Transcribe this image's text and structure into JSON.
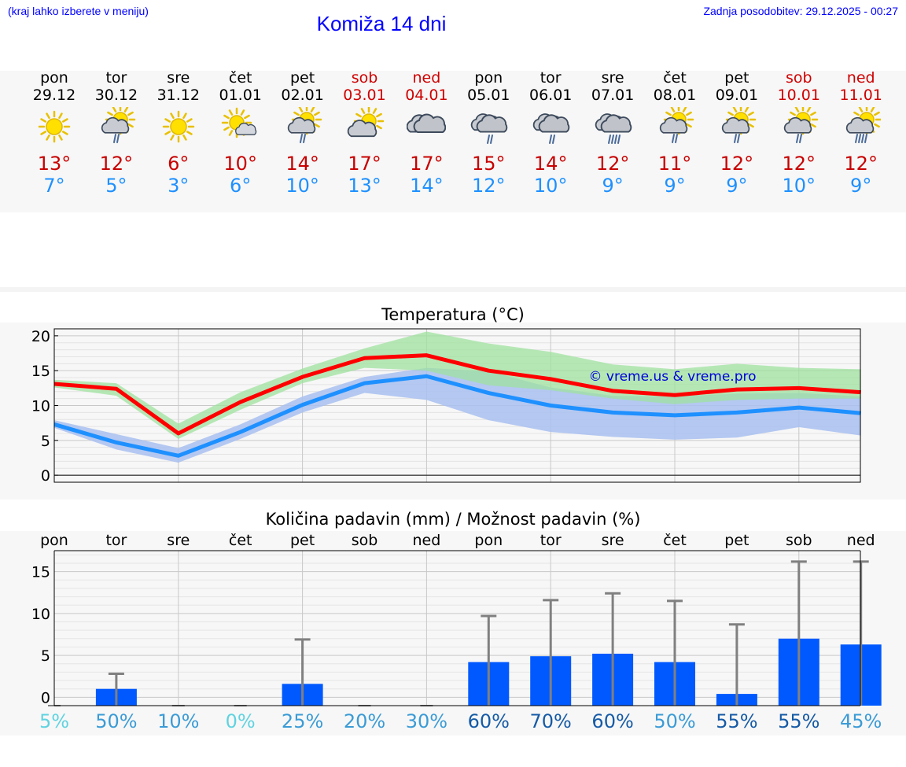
{
  "header": {
    "location_hint": "(kraj lahko izberete v meniju)",
    "title": "Komiža 14 dni",
    "last_update": "Zadnja posodobitev: 29.12.2025 - 00:27"
  },
  "days": [
    {
      "day": "pon",
      "date": "29.12",
      "tmax": "13°",
      "tmin": "7°",
      "icon": "sun-icon",
      "weekend": false
    },
    {
      "day": "tor",
      "date": "30.12",
      "tmax": "12°",
      "tmin": "5°",
      "icon": "sun-cloud-rain-icon",
      "weekend": false
    },
    {
      "day": "sre",
      "date": "31.12",
      "tmax": "6°",
      "tmin": "3°",
      "icon": "sun-icon",
      "weekend": false
    },
    {
      "day": "čet",
      "date": "01.01",
      "tmax": "10°",
      "tmin": "6°",
      "icon": "sun-small-cloud-icon",
      "weekend": false
    },
    {
      "day": "pet",
      "date": "02.01",
      "tmax": "14°",
      "tmin": "10°",
      "icon": "sun-cloud-rain-icon",
      "weekend": false
    },
    {
      "day": "sob",
      "date": "03.01",
      "tmax": "17°",
      "tmin": "13°",
      "icon": "sun-cloud-icon",
      "weekend": true
    },
    {
      "day": "ned",
      "date": "04.01",
      "tmax": "17°",
      "tmin": "14°",
      "icon": "cloud-icon",
      "weekend": true
    },
    {
      "day": "pon",
      "date": "05.01",
      "tmax": "15°",
      "tmin": "12°",
      "icon": "cloud-rain-icon",
      "weekend": false
    },
    {
      "day": "tor",
      "date": "06.01",
      "tmax": "14°",
      "tmin": "10°",
      "icon": "cloud-rain-icon",
      "weekend": false
    },
    {
      "day": "sre",
      "date": "07.01",
      "tmax": "12°",
      "tmin": "9°",
      "icon": "cloud-heavy-rain-icon",
      "weekend": false
    },
    {
      "day": "čet",
      "date": "08.01",
      "tmax": "11°",
      "tmin": "9°",
      "icon": "sun-cloud-rain-icon",
      "weekend": false
    },
    {
      "day": "pet",
      "date": "09.01",
      "tmax": "12°",
      "tmin": "9°",
      "icon": "sun-cloud-rain-icon",
      "weekend": false
    },
    {
      "day": "sob",
      "date": "10.01",
      "tmax": "12°",
      "tmin": "10°",
      "icon": "sun-cloud-rain-icon",
      "weekend": true
    },
    {
      "day": "ned",
      "date": "11.01",
      "tmax": "12°",
      "tmin": "9°",
      "icon": "sun-cloud-heavy-rain-icon",
      "weekend": true
    }
  ],
  "chart_data": [
    {
      "type": "line",
      "title": "Temperatura (°C)",
      "watermark": "© vreme.us & vreme.pro",
      "ylim": [
        -1,
        21
      ],
      "yticks": [
        0,
        5,
        10,
        15,
        20
      ],
      "series": [
        {
          "name": "max",
          "color": "#ff0000",
          "values": [
            13.1,
            12.4,
            6.0,
            10.5,
            14.1,
            16.8,
            17.2,
            15.0,
            13.8,
            12.1,
            11.5,
            12.3,
            12.5,
            11.9
          ]
        },
        {
          "name": "min",
          "color": "#1e90ff",
          "values": [
            7.3,
            4.7,
            2.8,
            6.2,
            10.1,
            13.2,
            14.2,
            11.8,
            10.0,
            9.0,
            8.6,
            9.0,
            9.7,
            8.9
          ]
        },
        {
          "name": "max-range",
          "color": "#9fe29f",
          "low": [
            12.6,
            11.4,
            5.2,
            9.4,
            13.2,
            15.4,
            15.0,
            12.9,
            12.2,
            11.0,
            10.2,
            10.8,
            11.0,
            11.0
          ],
          "high": [
            13.7,
            13.2,
            7.4,
            11.9,
            15.3,
            18.2,
            20.6,
            18.9,
            17.7,
            15.9,
            15.2,
            16.0,
            15.4,
            15.2
          ]
        },
        {
          "name": "min-range",
          "color": "#a8c0f0",
          "low": [
            6.8,
            3.7,
            1.8,
            5.2,
            9.0,
            11.8,
            10.8,
            7.9,
            6.2,
            5.5,
            5.1,
            5.4,
            6.9,
            5.7
          ],
          "high": [
            7.9,
            5.9,
            3.9,
            7.3,
            11.3,
            14.1,
            15.4,
            14.9,
            12.6,
            11.4,
            11.3,
            11.7,
            11.8,
            11.3
          ]
        }
      ]
    },
    {
      "type": "bar",
      "title": "Količina padavin (mm) / Možnost padavin (%)",
      "categories": [
        "pon",
        "tor",
        "sre",
        "čet",
        "pet",
        "sob",
        "ned",
        "pon",
        "tor",
        "sre",
        "čet",
        "pet",
        "sob",
        "ned"
      ],
      "ylim": [
        -1,
        17.5
      ],
      "yticks": [
        0,
        5,
        10,
        15
      ],
      "values": [
        0,
        1.0,
        0,
        0,
        1.6,
        0,
        0,
        4.2,
        4.9,
        5.2,
        4.2,
        0.4,
        7.0,
        6.3
      ],
      "error_high": [
        0,
        2.8,
        0,
        0,
        6.9,
        0,
        0,
        9.7,
        11.6,
        12.4,
        11.5,
        8.7,
        16.2,
        16.2
      ],
      "chance": [
        "5%",
        "50%",
        "10%",
        "0%",
        "25%",
        "20%",
        "30%",
        "60%",
        "70%",
        "60%",
        "50%",
        "55%",
        "55%",
        "45%"
      ],
      "chance_colors": [
        "#5fd3e0",
        "#3a9bd6",
        "#3a9bd6",
        "#5fd3e0",
        "#3a9bd6",
        "#3a9bd6",
        "#3a9bd6",
        "#155aa6",
        "#155aa6",
        "#155aa6",
        "#3a9bd6",
        "#155aa6",
        "#155aa6",
        "#3a9bd6"
      ],
      "bar_color": "#0059ff",
      "errorbar_color": "#808080"
    }
  ]
}
